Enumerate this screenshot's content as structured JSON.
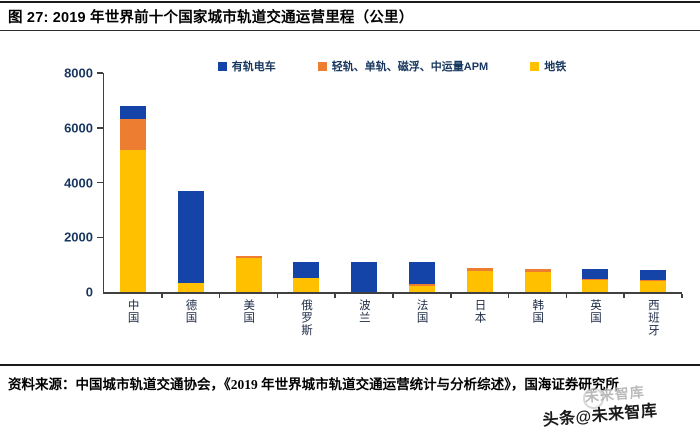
{
  "figure": {
    "title": "图 27: 2019 年世界前十个国家城市轨道交通运营里程（公里）",
    "source": "资料来源：中国城市轨道交通协会，《2019 年世界城市轨道交通运营统计与分析综述》，国海证券研究所",
    "watermark": "头条@未来智库",
    "watermark_ghost": "未来智库"
  },
  "legend": [
    {
      "label": "有轨电车",
      "color": "#1544A8"
    },
    {
      "label": "轻轨、单轨、磁浮、中运量APM",
      "color": "#ED7D31"
    },
    {
      "label": "地铁",
      "color": "#FFC000"
    }
  ],
  "chart_data": {
    "type": "bar",
    "stacked": true,
    "title": "2019 年世界前十个国家城市轨道交通运营里程（公里）",
    "xlabel": "",
    "ylabel": "",
    "categories": [
      "中国",
      "德国",
      "美国",
      "俄罗斯",
      "波兰",
      "法国",
      "日本",
      "韩国",
      "英国",
      "西班牙"
    ],
    "series": [
      {
        "name": "地铁",
        "color": "#FFC000",
        "values": [
          5180,
          330,
          1240,
          500,
          0,
          220,
          750,
          720,
          440,
          400
        ]
      },
      {
        "name": "轻轨、单轨、磁浮、中运量APM",
        "color": "#ED7D31",
        "values": [
          1140,
          0,
          90,
          0,
          0,
          90,
          140,
          110,
          30,
          30
        ]
      },
      {
        "name": "有轨电车",
        "color": "#1544A8",
        "values": [
          480,
          3350,
          0,
          610,
          1090,
          800,
          0,
          0,
          380,
          360
        ]
      }
    ],
    "totals": [
      6800,
      3680,
      1330,
      1110,
      1090,
      1110,
      890,
      830,
      850,
      790
    ],
    "ylim": [
      0,
      8000
    ],
    "yticks": [
      0,
      2000,
      4000,
      6000,
      8000
    ],
    "grid": false,
    "legend_position": "top"
  }
}
